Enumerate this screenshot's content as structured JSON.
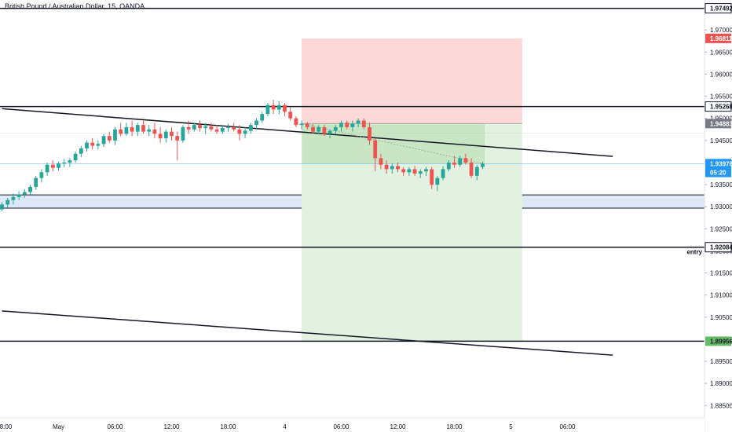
{
  "header": {
    "title": "British Pound / Australian Dollar, 15, OANDA"
  },
  "colors": {
    "up": "#26a69a",
    "down": "#ef5350",
    "stop_zone": "#fcd9d7",
    "target_zone": "#e3f1e0",
    "demand_zone": "#dde9f7",
    "price_line": "#2196f3",
    "avg_line": "#9e9e9e"
  },
  "chart_data": {
    "type": "candlestick",
    "symbol": "GBPAUD",
    "interval": "15",
    "broker": "OANDA",
    "ylim": [
      1.8822,
      1.9768
    ],
    "y_ticks": [
      "1.97000",
      "1.96500",
      "1.96000",
      "1.95500",
      "1.95000",
      "1.94500",
      "1.94000",
      "1.93500",
      "1.93000",
      "1.92500",
      "1.92000",
      "1.91500",
      "1.91000",
      "1.90500",
      "1.90000",
      "1.89500",
      "1.89000",
      "1.88500"
    ],
    "x_ticks": [
      "8:00",
      "May",
      "06:00",
      "12:00",
      "18:00",
      "4",
      "06:00",
      "12:00",
      "18:00",
      "5",
      "06:00"
    ],
    "horizontal_levels": [
      {
        "label": "1.97492",
        "value": 1.97492,
        "tag_color": "#ffffff"
      },
      {
        "label": "1.95268",
        "value": 1.95268,
        "tag_color": "#ffffff"
      },
      {
        "label": "1.92084",
        "value": 1.92084,
        "tag_color": "#ffffff",
        "note": "entry"
      },
      {
        "label": "1.89956",
        "value": 1.89956,
        "tag_color": "#66bb6a"
      }
    ],
    "price_tags": [
      {
        "label": "1.96811",
        "value": 1.96811,
        "color": "#ef5350"
      },
      {
        "label": "1.94883",
        "value": 1.94883,
        "color": "#787b86"
      },
      {
        "label": "1.93976",
        "value": 1.93976,
        "color": "#2196f3"
      },
      {
        "label": "05:20",
        "value": 1.93776,
        "color": "#2196f3"
      }
    ],
    "position": {
      "direction": "short",
      "entry": 1.94883,
      "stop": 1.96811,
      "target": 1.89956,
      "start_time": 53,
      "end_time": 92
    },
    "demand_zone": {
      "high": 1.93268,
      "low": 1.92968,
      "start_time": 0
    },
    "trendlines": [
      {
        "x1": 0,
        "y1": 1.9522,
        "x2": 108,
        "y2": 1.9414
      },
      {
        "x1": 0,
        "y1": 1.9064,
        "x2": 108,
        "y2": 1.8964
      }
    ],
    "x_label_times": [
      0,
      10,
      20,
      30,
      40,
      50,
      60,
      70,
      80,
      90,
      100
    ],
    "candles": [
      {
        "t": 0,
        "o": 1.9294,
        "h": 1.931,
        "l": 1.929,
        "c": 1.9305
      },
      {
        "t": 1,
        "o": 1.9305,
        "h": 1.932,
        "l": 1.9298,
        "c": 1.9315
      },
      {
        "t": 2,
        "o": 1.9315,
        "h": 1.933,
        "l": 1.9305,
        "c": 1.9322
      },
      {
        "t": 3,
        "o": 1.9322,
        "h": 1.9335,
        "l": 1.9315,
        "c": 1.9328
      },
      {
        "t": 4,
        "o": 1.9328,
        "h": 1.934,
        "l": 1.932,
        "c": 1.9333
      },
      {
        "t": 5,
        "o": 1.9333,
        "h": 1.935,
        "l": 1.9325,
        "c": 1.9345
      },
      {
        "t": 6,
        "o": 1.9345,
        "h": 1.937,
        "l": 1.9338,
        "c": 1.9365
      },
      {
        "t": 7,
        "o": 1.9365,
        "h": 1.9385,
        "l": 1.9355,
        "c": 1.9378
      },
      {
        "t": 8,
        "o": 1.9378,
        "h": 1.94,
        "l": 1.937,
        "c": 1.9395
      },
      {
        "t": 9,
        "o": 1.9395,
        "h": 1.9405,
        "l": 1.938,
        "c": 1.9388
      },
      {
        "t": 10,
        "o": 1.9388,
        "h": 1.9402,
        "l": 1.9382,
        "c": 1.9398
      },
      {
        "t": 11,
        "o": 1.9398,
        "h": 1.9408,
        "l": 1.939,
        "c": 1.94
      },
      {
        "t": 12,
        "o": 1.94,
        "h": 1.941,
        "l": 1.939,
        "c": 1.9405
      },
      {
        "t": 13,
        "o": 1.9405,
        "h": 1.9425,
        "l": 1.94,
        "c": 1.942
      },
      {
        "t": 14,
        "o": 1.942,
        "h": 1.9438,
        "l": 1.9412,
        "c": 1.9432
      },
      {
        "t": 15,
        "o": 1.9432,
        "h": 1.945,
        "l": 1.9425,
        "c": 1.9445
      },
      {
        "t": 16,
        "o": 1.9445,
        "h": 1.9455,
        "l": 1.943,
        "c": 1.9438
      },
      {
        "t": 17,
        "o": 1.9438,
        "h": 1.945,
        "l": 1.943,
        "c": 1.9442
      },
      {
        "t": 18,
        "o": 1.9442,
        "h": 1.9465,
        "l": 1.9435,
        "c": 1.946
      },
      {
        "t": 19,
        "o": 1.946,
        "h": 1.947,
        "l": 1.9445,
        "c": 1.945
      },
      {
        "t": 20,
        "o": 1.945,
        "h": 1.948,
        "l": 1.944,
        "c": 1.9475
      },
      {
        "t": 21,
        "o": 1.9475,
        "h": 1.949,
        "l": 1.946,
        "c": 1.9465
      },
      {
        "t": 22,
        "o": 1.9465,
        "h": 1.949,
        "l": 1.946,
        "c": 1.948
      },
      {
        "t": 23,
        "o": 1.948,
        "h": 1.9495,
        "l": 1.946,
        "c": 1.947
      },
      {
        "t": 24,
        "o": 1.947,
        "h": 1.949,
        "l": 1.946,
        "c": 1.9485
      },
      {
        "t": 25,
        "o": 1.9485,
        "h": 1.9495,
        "l": 1.9465,
        "c": 1.947
      },
      {
        "t": 26,
        "o": 1.947,
        "h": 1.9485,
        "l": 1.946,
        "c": 1.9475
      },
      {
        "t": 27,
        "o": 1.9475,
        "h": 1.949,
        "l": 1.9455,
        "c": 1.9465
      },
      {
        "t": 28,
        "o": 1.9465,
        "h": 1.948,
        "l": 1.9445,
        "c": 1.9455
      },
      {
        "t": 29,
        "o": 1.9455,
        "h": 1.9475,
        "l": 1.9445,
        "c": 1.947
      },
      {
        "t": 30,
        "o": 1.947,
        "h": 1.948,
        "l": 1.945,
        "c": 1.946
      },
      {
        "t": 31,
        "o": 1.946,
        "h": 1.947,
        "l": 1.9405,
        "c": 1.945
      },
      {
        "t": 32,
        "o": 1.945,
        "h": 1.9485,
        "l": 1.9445,
        "c": 1.948
      },
      {
        "t": 33,
        "o": 1.948,
        "h": 1.9495,
        "l": 1.9465,
        "c": 1.9475
      },
      {
        "t": 34,
        "o": 1.9475,
        "h": 1.949,
        "l": 1.947,
        "c": 1.9485
      },
      {
        "t": 35,
        "o": 1.9485,
        "h": 1.9495,
        "l": 1.947,
        "c": 1.9478
      },
      {
        "t": 36,
        "o": 1.9478,
        "h": 1.949,
        "l": 1.9465,
        "c": 1.9482
      },
      {
        "t": 37,
        "o": 1.9482,
        "h": 1.949,
        "l": 1.947,
        "c": 1.9475
      },
      {
        "t": 38,
        "o": 1.9475,
        "h": 1.9485,
        "l": 1.9465,
        "c": 1.947
      },
      {
        "t": 39,
        "o": 1.947,
        "h": 1.9485,
        "l": 1.9465,
        "c": 1.9478
      },
      {
        "t": 40,
        "o": 1.9478,
        "h": 1.9488,
        "l": 1.947,
        "c": 1.948
      },
      {
        "t": 41,
        "o": 1.948,
        "h": 1.949,
        "l": 1.947,
        "c": 1.9475
      },
      {
        "t": 42,
        "o": 1.9475,
        "h": 1.9485,
        "l": 1.945,
        "c": 1.9465
      },
      {
        "t": 43,
        "o": 1.9465,
        "h": 1.948,
        "l": 1.9455,
        "c": 1.9472
      },
      {
        "t": 44,
        "o": 1.9472,
        "h": 1.949,
        "l": 1.9465,
        "c": 1.9485
      },
      {
        "t": 45,
        "o": 1.9485,
        "h": 1.95,
        "l": 1.9475,
        "c": 1.9495
      },
      {
        "t": 46,
        "o": 1.9495,
        "h": 1.9515,
        "l": 1.949,
        "c": 1.951
      },
      {
        "t": 47,
        "o": 1.951,
        "h": 1.9535,
        "l": 1.9505,
        "c": 1.953
      },
      {
        "t": 48,
        "o": 1.953,
        "h": 1.9542,
        "l": 1.951,
        "c": 1.952
      },
      {
        "t": 49,
        "o": 1.952,
        "h": 1.9538,
        "l": 1.951,
        "c": 1.953
      },
      {
        "t": 50,
        "o": 1.953,
        "h": 1.9535,
        "l": 1.9505,
        "c": 1.9515
      },
      {
        "t": 51,
        "o": 1.9515,
        "h": 1.9525,
        "l": 1.9495,
        "c": 1.95
      },
      {
        "t": 52,
        "o": 1.95,
        "h": 1.9505,
        "l": 1.948,
        "c": 1.9485
      },
      {
        "t": 53,
        "o": 1.9485,
        "h": 1.9495,
        "l": 1.9475,
        "c": 1.9488
      },
      {
        "t": 54,
        "o": 1.9488,
        "h": 1.9492,
        "l": 1.9475,
        "c": 1.948
      },
      {
        "t": 55,
        "o": 1.948,
        "h": 1.9487,
        "l": 1.9465,
        "c": 1.947
      },
      {
        "t": 56,
        "o": 1.947,
        "h": 1.9485,
        "l": 1.9465,
        "c": 1.948
      },
      {
        "t": 57,
        "o": 1.948,
        "h": 1.9485,
        "l": 1.946,
        "c": 1.9465
      },
      {
        "t": 58,
        "o": 1.9465,
        "h": 1.9475,
        "l": 1.9455,
        "c": 1.9472
      },
      {
        "t": 59,
        "o": 1.9472,
        "h": 1.9485,
        "l": 1.9465,
        "c": 1.948
      },
      {
        "t": 60,
        "o": 1.948,
        "h": 1.9495,
        "l": 1.947,
        "c": 1.949
      },
      {
        "t": 61,
        "o": 1.949,
        "h": 1.9495,
        "l": 1.9475,
        "c": 1.948
      },
      {
        "t": 62,
        "o": 1.948,
        "h": 1.9495,
        "l": 1.947,
        "c": 1.9488
      },
      {
        "t": 63,
        "o": 1.9488,
        "h": 1.95,
        "l": 1.948,
        "c": 1.9495
      },
      {
        "t": 64,
        "o": 1.9495,
        "h": 1.95,
        "l": 1.9475,
        "c": 1.948
      },
      {
        "t": 65,
        "o": 1.948,
        "h": 1.949,
        "l": 1.944,
        "c": 1.945
      },
      {
        "t": 66,
        "o": 1.945,
        "h": 1.9455,
        "l": 1.938,
        "c": 1.941
      },
      {
        "t": 67,
        "o": 1.941,
        "h": 1.942,
        "l": 1.9385,
        "c": 1.9395
      },
      {
        "t": 68,
        "o": 1.9395,
        "h": 1.9405,
        "l": 1.9375,
        "c": 1.9385
      },
      {
        "t": 69,
        "o": 1.9385,
        "h": 1.9398,
        "l": 1.9375,
        "c": 1.9392
      },
      {
        "t": 70,
        "o": 1.9392,
        "h": 1.94,
        "l": 1.9378,
        "c": 1.9385
      },
      {
        "t": 71,
        "o": 1.9385,
        "h": 1.939,
        "l": 1.937,
        "c": 1.9378
      },
      {
        "t": 72,
        "o": 1.9378,
        "h": 1.939,
        "l": 1.937,
        "c": 1.9385
      },
      {
        "t": 73,
        "o": 1.9385,
        "h": 1.9392,
        "l": 1.937,
        "c": 1.9375
      },
      {
        "t": 74,
        "o": 1.9375,
        "h": 1.9385,
        "l": 1.9365,
        "c": 1.938
      },
      {
        "t": 75,
        "o": 1.938,
        "h": 1.939,
        "l": 1.937,
        "c": 1.9385
      },
      {
        "t": 76,
        "o": 1.9385,
        "h": 1.939,
        "l": 1.934,
        "c": 1.935
      },
      {
        "t": 77,
        "o": 1.935,
        "h": 1.937,
        "l": 1.9335,
        "c": 1.9365
      },
      {
        "t": 78,
        "o": 1.9365,
        "h": 1.9392,
        "l": 1.936,
        "c": 1.9385
      },
      {
        "t": 79,
        "o": 1.9385,
        "h": 1.9405,
        "l": 1.938,
        "c": 1.94
      },
      {
        "t": 80,
        "o": 1.94,
        "h": 1.9415,
        "l": 1.9388,
        "c": 1.9395
      },
      {
        "t": 81,
        "o": 1.9395,
        "h": 1.9415,
        "l": 1.939,
        "c": 1.941
      },
      {
        "t": 82,
        "o": 1.941,
        "h": 1.942,
        "l": 1.9395,
        "c": 1.94
      },
      {
        "t": 83,
        "o": 1.94,
        "h": 1.941,
        "l": 1.9365,
        "c": 1.937
      },
      {
        "t": 84,
        "o": 1.937,
        "h": 1.9395,
        "l": 1.936,
        "c": 1.939
      },
      {
        "t": 85,
        "o": 1.939,
        "h": 1.9402,
        "l": 1.9385,
        "c": 1.93976
      }
    ]
  }
}
